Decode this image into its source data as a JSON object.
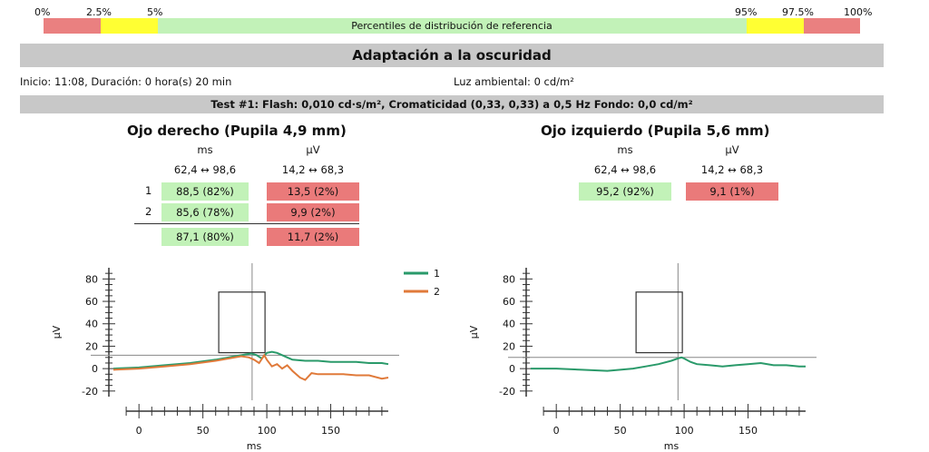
{
  "percentile_bar": {
    "labels": [
      "0%",
      "2.5%",
      "5%",
      "95%",
      "97.5%",
      "100%"
    ],
    "title": "Percentiles de distribución de referencia",
    "colors": {
      "red": "#ea8080",
      "yellow": "#ffff33",
      "green": "#c2f2b8"
    }
  },
  "header": {
    "title": "Adaptación a la oscuridad",
    "start_info": "Inicio: 11:08, Duración: 0 hora(s) 20 min",
    "ambient": "Luz ambiental: 0 cd/m²",
    "test": "Test #1:   Flash: 0,010 cd·s/m², Cromaticidad (0,33, 0,33) a 0,5 Hz   Fondo: 0,0 cd/m²"
  },
  "right_eye": {
    "title": "Ojo derecho (Pupila 4,9 mm)",
    "col_ms": "ms",
    "col_uv": "µV",
    "range_ms": "62,4 ↔ 98,6",
    "range_uv": "14,2 ↔ 68,3",
    "rows": [
      {
        "label": "1",
        "ms": "88,5 (82%)",
        "uv": "13,5 (2%)"
      },
      {
        "label": "2",
        "ms": "85,6 (78%)",
        "uv": "9,9 (2%)"
      }
    ],
    "mean": {
      "ms": "87,1 (80%)",
      "uv": "11,7 (2%)"
    }
  },
  "left_eye": {
    "title": "Ojo izquierdo (Pupila 5,6 mm)",
    "col_ms": "ms",
    "col_uv": "µV",
    "range_ms": "62,4 ↔ 98,6",
    "range_uv": "14,2 ↔ 68,3",
    "rows": [
      {
        "label": "",
        "ms": "95,2 (92%)",
        "uv": "9,1 (1%)"
      }
    ]
  },
  "chart_data": [
    {
      "type": "line",
      "ylabel": "µV",
      "xlabel": "ms",
      "xlim": [
        -20,
        200
      ],
      "ylim": [
        -25,
        90
      ],
      "xticks": [
        0,
        50,
        100,
        150
      ],
      "yticks": [
        80,
        60,
        40,
        20,
        0,
        -20
      ],
      "ref_box": {
        "x": [
          62.4,
          98.6
        ],
        "y": [
          14.2,
          68.3
        ]
      },
      "vline_x": 88.5,
      "hline_y": 12,
      "series": [
        {
          "name": "1",
          "color": "#2a9a6a",
          "x": [
            -20,
            0,
            20,
            40,
            60,
            70,
            80,
            85,
            88,
            92,
            96,
            100,
            104,
            108,
            112,
            116,
            120,
            130,
            140,
            150,
            160,
            170,
            180,
            190,
            195
          ],
          "y": [
            0,
            1,
            3,
            5,
            8,
            10,
            12,
            13,
            13.5,
            12,
            9,
            14,
            15,
            14,
            12,
            10,
            8,
            7,
            7,
            6,
            6,
            6,
            5,
            5,
            4
          ]
        },
        {
          "name": "2",
          "color": "#e07a3a",
          "x": [
            -20,
            0,
            20,
            40,
            60,
            70,
            80,
            86,
            90,
            94,
            98,
            100,
            104,
            108,
            112,
            116,
            120,
            126,
            130,
            135,
            140,
            150,
            160,
            170,
            180,
            190,
            195
          ],
          "y": [
            -1,
            0,
            2,
            4,
            7,
            9,
            11,
            10,
            8,
            5,
            12,
            8,
            2,
            4,
            0,
            3,
            -2,
            -8,
            -10,
            -4,
            -5,
            -5,
            -5,
            -6,
            -6,
            -9,
            -8
          ]
        }
      ]
    },
    {
      "type": "line",
      "ylabel": "µV",
      "xlabel": "ms",
      "xlim": [
        -20,
        200
      ],
      "ylim": [
        -25,
        90
      ],
      "xticks": [
        0,
        50,
        100,
        150
      ],
      "yticks": [
        80,
        60,
        40,
        20,
        0,
        -20
      ],
      "ref_box": {
        "x": [
          62.4,
          98.6
        ],
        "y": [
          14.2,
          68.3
        ]
      },
      "vline_x": 95.2,
      "hline_y": 10,
      "series": [
        {
          "name": "",
          "color": "#2a9a6a",
          "x": [
            -20,
            0,
            20,
            40,
            60,
            70,
            80,
            90,
            95,
            98,
            100,
            105,
            110,
            120,
            130,
            140,
            150,
            160,
            170,
            180,
            190,
            195
          ],
          "y": [
            0,
            0,
            -1,
            -2,
            0,
            2,
            4,
            7,
            9,
            10,
            9,
            6,
            4,
            3,
            2,
            3,
            4,
            5,
            3,
            3,
            2,
            2
          ]
        }
      ]
    }
  ]
}
